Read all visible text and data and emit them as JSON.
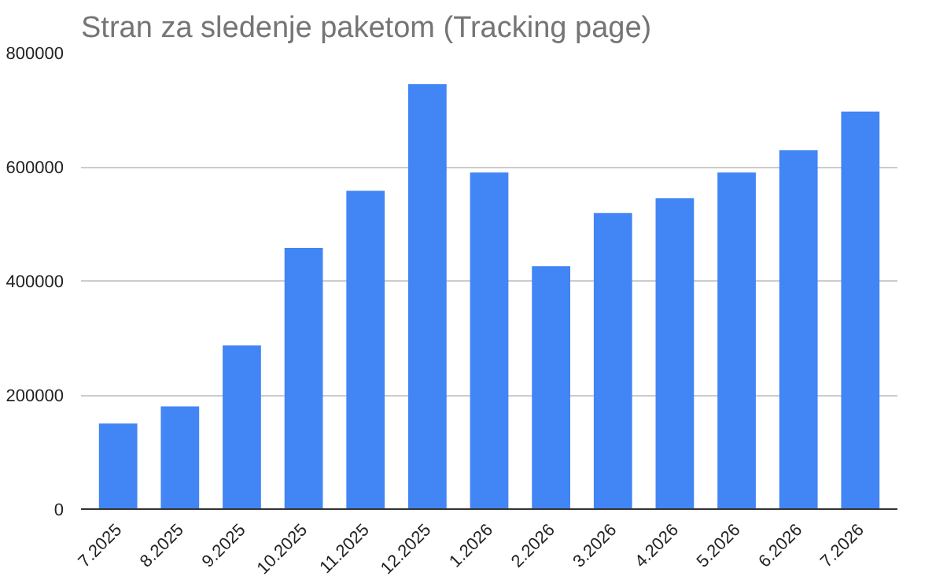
{
  "chart_data": {
    "type": "bar",
    "title": "Stran za sledenje paketom (Tracking page)",
    "categories": [
      "7.2025",
      "8.2025",
      "9.2025",
      "10.2025",
      "11.2025",
      "12.2025",
      "1.2026",
      "2.2026",
      "3.2026",
      "4.2026",
      "5.2026",
      "6.2026",
      "7.2026"
    ],
    "values": [
      150000,
      180000,
      287000,
      458000,
      558000,
      745000,
      590000,
      426000,
      519000,
      545000,
      590000,
      629000,
      697000
    ],
    "color": "#4285f4",
    "ylim": [
      0,
      800000
    ],
    "yticks": [
      0,
      200000,
      400000,
      600000,
      800000
    ],
    "grid": "y"
  }
}
